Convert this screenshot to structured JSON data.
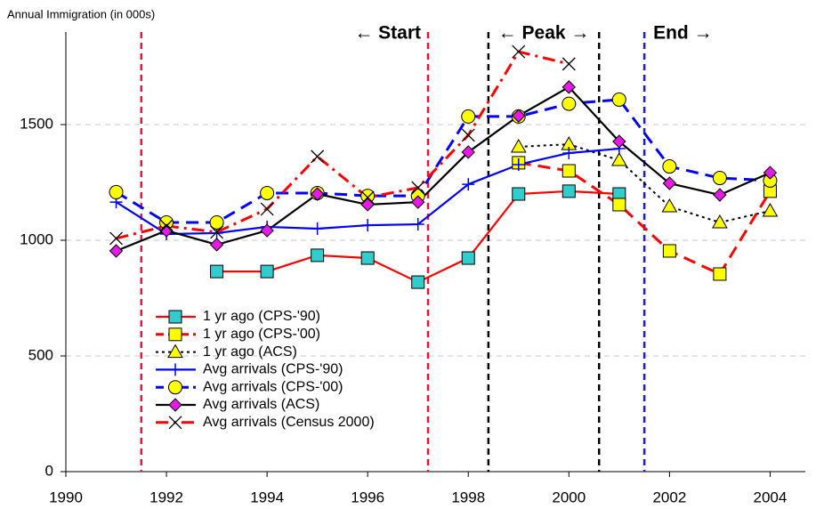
{
  "chart_data": {
    "type": "line",
    "title": "Annual Immigration (in 000s)",
    "x": [
      1991,
      1992,
      1993,
      1994,
      1995,
      1996,
      1997,
      1998,
      1999,
      2000,
      2001,
      2002,
      2003,
      2004
    ],
    "xlim": [
      1990,
      2004.7
    ],
    "xticks": [
      1990,
      1992,
      1994,
      1996,
      1998,
      2000,
      2002,
      2004
    ],
    "ylim": [
      0,
      1900
    ],
    "yticks": [
      0,
      500,
      1000,
      1500
    ],
    "grid": true,
    "periods": [
      {
        "label": "← Start",
        "color": "#e8143c",
        "x": [
          1991.5,
          1997.2
        ]
      },
      {
        "label": "← Peak →",
        "color": "#000000",
        "x": [
          1998.4,
          2000.6
        ]
      },
      {
        "label": "End →",
        "color": "#1a1ae6",
        "x": [
          2001.5
        ]
      }
    ],
    "series": [
      {
        "name": "1 yr ago (CPS-'90)",
        "color": "#ff0000",
        "marker": "square",
        "marker_color": "#33cccc",
        "dash": "solid",
        "values": [
          null,
          null,
          865,
          865,
          935,
          923,
          819,
          923,
          1200,
          1212,
          1200,
          null,
          null,
          null
        ]
      },
      {
        "name": "1 yr ago (CPS-'00)",
        "color": "#ff0000",
        "marker": "square",
        "marker_color": "#ffff00",
        "dash": "dashed",
        "values": [
          null,
          null,
          null,
          null,
          null,
          null,
          null,
          null,
          1335,
          1300,
          1154,
          954,
          854,
          1212
        ]
      },
      {
        "name": "1 yr ago (ACS)",
        "color": "#000000",
        "marker": "triangle",
        "marker_color": "#ffff00",
        "dash": "dotted",
        "values": [
          null,
          null,
          null,
          null,
          null,
          null,
          null,
          null,
          1404,
          1415,
          1346,
          1146,
          1077,
          1127
        ]
      },
      {
        "name": "Avg arrivals (CPS-'90)",
        "color": "#0000ff",
        "marker": "plus",
        "marker_color": "#0000ff",
        "dash": "solid",
        "values": [
          1165,
          1027,
          1031,
          1058,
          1050,
          1065,
          1069,
          1242,
          1327,
          1377,
          1396,
          null,
          null,
          null
        ]
      },
      {
        "name": "Avg arrivals (CPS-'00)",
        "color": "#0000ff",
        "marker": "circle",
        "marker_color": "#ffff00",
        "dash": "dashed",
        "values": [
          1208,
          1077,
          1077,
          1204,
          1204,
          1192,
          1192,
          1535,
          1535,
          1590,
          1608,
          1319,
          1269,
          1258
        ]
      },
      {
        "name": "Avg arrivals (ACS)",
        "color": "#000000",
        "marker": "diamond",
        "marker_color": "#e619e6",
        "dash": "solid",
        "values": [
          954,
          1042,
          981,
          1042,
          1200,
          1154,
          1165,
          1381,
          1538,
          1662,
          1427,
          1246,
          1196,
          1292
        ]
      },
      {
        "name": "Avg arrivals (Census 2000)",
        "color": "#ff0000",
        "marker": "x",
        "marker_color": "#000000",
        "dash": "dashdot",
        "values": [
          1008,
          1062,
          1035,
          1135,
          1362,
          1185,
          1227,
          1454,
          1815,
          1762,
          null,
          null,
          null,
          null
        ]
      }
    ]
  }
}
